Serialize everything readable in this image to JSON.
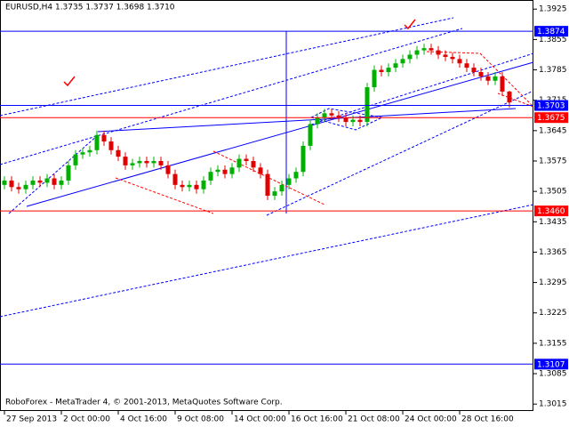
{
  "chart_data": {
    "type": "candlestick",
    "title": "EURUSD,H4  1.3735 1.3737 1.3698 1.3710",
    "footer": "RoboForex - MetaTrader 4, © 2001-2013, MetaQuotes Software Corp.",
    "categories": [
      "27 Sep 2013",
      null,
      null,
      null,
      null,
      null,
      null,
      null,
      "2 Oct 00:00",
      null,
      null,
      null,
      null,
      null,
      null,
      null,
      "4 Oct 16:00",
      null,
      null,
      null,
      null,
      null,
      null,
      null,
      "9 Oct 08:00",
      null,
      null,
      null,
      null,
      null,
      null,
      null,
      "14 Oct 00:00",
      null,
      null,
      null,
      null,
      null,
      null,
      null,
      "16 Oct 16:00",
      null,
      null,
      null,
      null,
      null,
      null,
      null,
      "21 Oct 08:00",
      null,
      null,
      null,
      null,
      null,
      null,
      null,
      "24 Oct 00:00",
      null,
      null,
      null,
      null,
      null,
      null,
      null,
      "28 Oct 16:00",
      null,
      null,
      null,
      null,
      null,
      null,
      null
    ],
    "open": [
      1.352,
      1.353,
      1.3515,
      1.351,
      1.352,
      1.353,
      1.3525,
      1.3535,
      1.352,
      1.353,
      1.3565,
      1.359,
      1.3595,
      1.36,
      1.3635,
      1.362,
      1.36,
      1.3585,
      1.3565,
      1.357,
      1.3575,
      1.357,
      1.3575,
      1.3565,
      1.3545,
      1.352,
      1.3515,
      1.352,
      1.351,
      1.353,
      1.355,
      1.3555,
      1.3545,
      1.356,
      1.358,
      1.3575,
      1.356,
      1.3545,
      1.3495,
      1.3505,
      1.352,
      1.3535,
      1.355,
      1.361,
      1.366,
      1.3675,
      1.3685,
      1.368,
      1.3675,
      1.3665,
      1.367,
      1.3665,
      1.3745,
      1.3785,
      1.378,
      1.379,
      1.38,
      1.381,
      1.382,
      1.383,
      1.3835,
      1.383,
      1.382,
      1.3815,
      1.381,
      1.38,
      1.379,
      1.378,
      1.377,
      1.376,
      1.377,
      1.3735
    ],
    "high": [
      1.354,
      1.354,
      1.3525,
      1.353,
      1.354,
      1.354,
      1.3545,
      1.3545,
      1.354,
      1.3575,
      1.36,
      1.3605,
      1.361,
      1.3645,
      1.3645,
      1.363,
      1.361,
      1.3595,
      1.358,
      1.3585,
      1.3585,
      1.3585,
      1.3585,
      1.3575,
      1.3555,
      1.353,
      1.353,
      1.353,
      1.354,
      1.356,
      1.3565,
      1.3565,
      1.357,
      1.359,
      1.359,
      1.3585,
      1.357,
      1.3555,
      1.3515,
      1.353,
      1.3545,
      1.356,
      1.362,
      1.367,
      1.3685,
      1.3695,
      1.3695,
      1.369,
      1.3685,
      1.368,
      1.368,
      1.3755,
      1.3795,
      1.3795,
      1.38,
      1.381,
      1.382,
      1.383,
      1.384,
      1.3845,
      1.3845,
      1.384,
      1.383,
      1.3825,
      1.382,
      1.381,
      1.38,
      1.379,
      1.378,
      1.378,
      1.378,
      1.3737
    ],
    "low": [
      1.351,
      1.3505,
      1.35,
      1.35,
      1.351,
      1.3515,
      1.3515,
      1.351,
      1.351,
      1.352,
      1.3555,
      1.358,
      1.3585,
      1.359,
      1.361,
      1.359,
      1.3575,
      1.3555,
      1.3555,
      1.356,
      1.356,
      1.356,
      1.3555,
      1.3535,
      1.351,
      1.3505,
      1.3505,
      1.35,
      1.35,
      1.352,
      1.354,
      1.3535,
      1.3535,
      1.355,
      1.3565,
      1.355,
      1.3535,
      1.3485,
      1.3485,
      1.3495,
      1.351,
      1.3525,
      1.354,
      1.36,
      1.365,
      1.3665,
      1.367,
      1.3665,
      1.3655,
      1.3655,
      1.3655,
      1.3655,
      1.3735,
      1.377,
      1.377,
      1.378,
      1.379,
      1.38,
      1.381,
      1.382,
      1.382,
      1.381,
      1.3805,
      1.38,
      1.379,
      1.378,
      1.377,
      1.376,
      1.375,
      1.375,
      1.3725,
      1.3698
    ],
    "close": [
      1.353,
      1.3515,
      1.351,
      1.352,
      1.353,
      1.3525,
      1.3535,
      1.352,
      1.353,
      1.3565,
      1.359,
      1.3595,
      1.36,
      1.3635,
      1.362,
      1.36,
      1.3585,
      1.3565,
      1.357,
      1.3575,
      1.357,
      1.3575,
      1.3565,
      1.3545,
      1.352,
      1.3515,
      1.352,
      1.351,
      1.353,
      1.355,
      1.3555,
      1.3545,
      1.356,
      1.358,
      1.3575,
      1.356,
      1.3545,
      1.3495,
      1.3505,
      1.352,
      1.3535,
      1.355,
      1.361,
      1.366,
      1.3675,
      1.3685,
      1.368,
      1.3675,
      1.3665,
      1.367,
      1.3665,
      1.3745,
      1.3785,
      1.378,
      1.379,
      1.38,
      1.381,
      1.382,
      1.383,
      1.3835,
      1.383,
      1.382,
      1.3815,
      1.381,
      1.38,
      1.379,
      1.378,
      1.377,
      1.376,
      1.377,
      1.3735,
      1.371
    ],
    "up_color": "#00b000",
    "down_color": "#e00000",
    "ylim": [
      1.2999,
      1.3946
    ],
    "yticks": [
      1.3925,
      1.3855,
      1.3785,
      1.3715,
      1.3645,
      1.3575,
      1.3505,
      1.3435,
      1.3365,
      1.3295,
      1.3225,
      1.3155,
      1.3085,
      1.3015
    ],
    "levels": [
      {
        "value": 1.3874,
        "color": "#0000ff"
      },
      {
        "value": 1.3703,
        "color": "#0000ff"
      },
      {
        "value": 1.3675,
        "color": "#ff0000"
      },
      {
        "value": 1.346,
        "label": "1.3460",
        "color": "#ff0000"
      },
      {
        "value": 1.3107,
        "color": "#0000ff"
      }
    ]
  }
}
